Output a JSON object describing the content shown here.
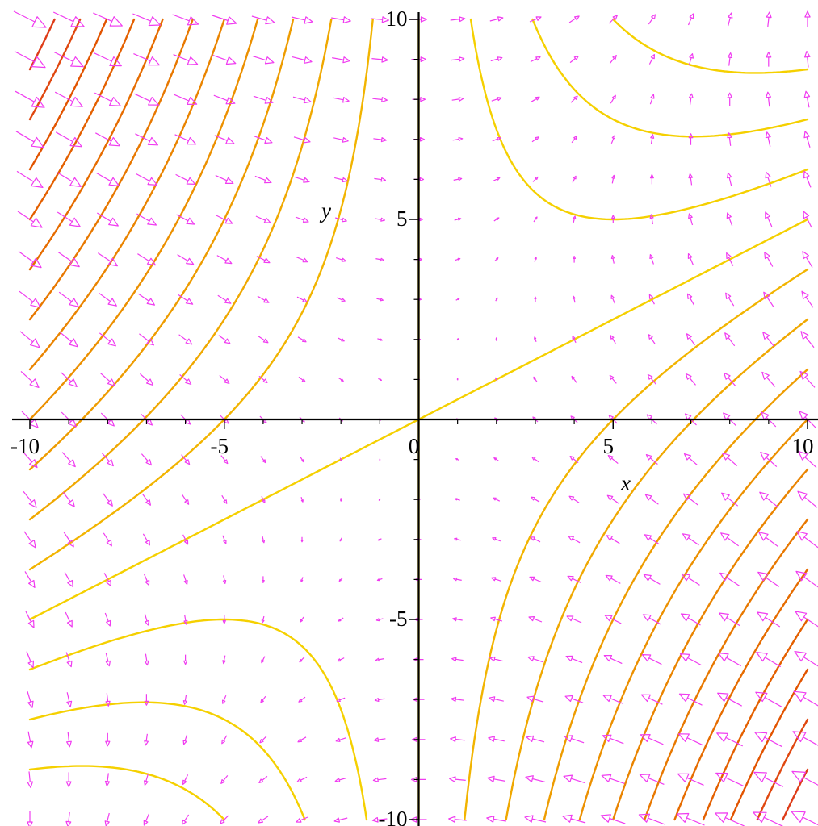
{
  "chart_data": {
    "type": "vector_field",
    "xlabel": "x",
    "ylabel": "y",
    "xlim": [
      -10,
      10
    ],
    "ylim": [
      -10,
      10
    ],
    "xticks": [
      -10,
      -5,
      0,
      5,
      10
    ],
    "yticks": [
      -10,
      -5,
      5,
      10
    ],
    "xminorticks": [
      -9,
      -8,
      -7,
      -6,
      -4,
      -3,
      -2,
      -1,
      1,
      2,
      3,
      4,
      6,
      7,
      8,
      9
    ],
    "yminorticks": [
      -9,
      -8,
      -7,
      -6,
      -4,
      -3,
      -2,
      -1,
      1,
      2,
      3,
      4,
      6,
      7,
      8,
      9
    ],
    "arrow_color": "#f03cf0",
    "axis_color": "#000000",
    "field": {
      "x": [
        -10,
        -9,
        -8,
        -7,
        -6,
        -5,
        -4,
        -3,
        -2,
        -1,
        0,
        1,
        2,
        3,
        4,
        5,
        6,
        7,
        8,
        9,
        10
      ],
      "y": [
        -10,
        -9,
        -8,
        -7,
        -6,
        -5,
        -4,
        -3,
        -2,
        -1,
        0,
        1,
        2,
        3,
        4,
        5,
        6,
        7,
        8,
        9,
        10
      ],
      "u": [
        [
          0,
          -1,
          -2,
          -3,
          -4,
          -5,
          -6,
          -7,
          -8,
          -9,
          -10,
          -11,
          -12,
          -13,
          -14,
          -15,
          -16,
          -17,
          -18,
          -19,
          -20
        ],
        [
          1,
          0,
          -1,
          -2,
          -3,
          -4,
          -5,
          -6,
          -7,
          -8,
          -9,
          -10,
          -11,
          -12,
          -13,
          -14,
          -15,
          -16,
          -17,
          -18,
          -19
        ],
        [
          2,
          1,
          0,
          -1,
          -2,
          -3,
          -4,
          -5,
          -6,
          -7,
          -8,
          -9,
          -10,
          -11,
          -12,
          -13,
          -14,
          -15,
          -16,
          -17,
          -18
        ],
        [
          3,
          2,
          1,
          0,
          -1,
          -2,
          -3,
          -4,
          -5,
          -6,
          -7,
          -8,
          -9,
          -10,
          -11,
          -12,
          -13,
          -14,
          -15,
          -16,
          -17
        ],
        [
          4,
          3,
          2,
          1,
          0,
          -1,
          -2,
          -3,
          -4,
          -5,
          -6,
          -7,
          -8,
          -9,
          -10,
          -11,
          -12,
          -13,
          -14,
          -15,
          -16
        ],
        [
          5,
          4,
          3,
          2,
          1,
          0,
          -1,
          -2,
          -3,
          -4,
          -5,
          -6,
          -7,
          -8,
          -9,
          -10,
          -11,
          -12,
          -13,
          -14,
          -15
        ],
        [
          6,
          5,
          4,
          3,
          2,
          1,
          0,
          -1,
          -2,
          -3,
          -4,
          -5,
          -6,
          -7,
          -8,
          -9,
          -10,
          -11,
          -12,
          -13,
          -14
        ],
        [
          7,
          6,
          5,
          4,
          3,
          2,
          1,
          0,
          -1,
          -2,
          -3,
          -4,
          -5,
          -6,
          -7,
          -8,
          -9,
          -10,
          -11,
          -12,
          -13
        ],
        [
          8,
          7,
          6,
          5,
          4,
          3,
          2,
          1,
          0,
          -1,
          -2,
          -3,
          -4,
          -5,
          -6,
          -7,
          -8,
          -9,
          -10,
          -11,
          -12
        ],
        [
          9,
          8,
          7,
          6,
          5,
          4,
          3,
          2,
          1,
          0,
          -1,
          -2,
          -3,
          -4,
          -5,
          -6,
          -7,
          -8,
          -9,
          -10,
          -11
        ],
        [
          10,
          9,
          8,
          7,
          6,
          5,
          4,
          3,
          2,
          1,
          0,
          -1,
          -2,
          -3,
          -4,
          -5,
          -6,
          -7,
          -8,
          -9,
          -10
        ],
        [
          11,
          10,
          9,
          8,
          7,
          6,
          5,
          4,
          3,
          2,
          1,
          0,
          -1,
          -2,
          -3,
          -4,
          -5,
          -6,
          -7,
          -8,
          -9
        ],
        [
          12,
          11,
          10,
          9,
          8,
          7,
          6,
          5,
          4,
          3,
          2,
          1,
          0,
          -1,
          -2,
          -3,
          -4,
          -5,
          -6,
          -7,
          -8
        ],
        [
          13,
          12,
          11,
          10,
          9,
          8,
          7,
          6,
          5,
          4,
          3,
          2,
          1,
          0,
          -1,
          -2,
          -3,
          -4,
          -5,
          -6,
          -7
        ],
        [
          14,
          13,
          12,
          11,
          10,
          9,
          8,
          7,
          6,
          5,
          4,
          3,
          2,
          1,
          0,
          -1,
          -2,
          -3,
          -4,
          -5,
          -6
        ],
        [
          15,
          14,
          13,
          12,
          11,
          10,
          9,
          8,
          7,
          6,
          5,
          4,
          3,
          2,
          1,
          0,
          -1,
          -2,
          -3,
          -4,
          -5
        ],
        [
          16,
          15,
          14,
          13,
          12,
          11,
          10,
          9,
          8,
          7,
          6,
          5,
          4,
          3,
          2,
          1,
          0,
          -1,
          -2,
          -3,
          -4
        ],
        [
          17,
          16,
          15,
          14,
          13,
          12,
          11,
          10,
          9,
          8,
          7,
          6,
          5,
          4,
          3,
          2,
          1,
          0,
          -1,
          -2,
          -3
        ],
        [
          18,
          17,
          16,
          15,
          14,
          13,
          12,
          11,
          10,
          9,
          8,
          7,
          6,
          5,
          4,
          3,
          2,
          1,
          0,
          -1,
          -2
        ],
        [
          19,
          18,
          17,
          16,
          15,
          14,
          13,
          12,
          11,
          10,
          9,
          8,
          7,
          6,
          5,
          4,
          3,
          2,
          1,
          0,
          -1
        ],
        [
          20,
          19,
          18,
          17,
          16,
          15,
          14,
          13,
          12,
          11,
          10,
          9,
          8,
          7,
          6,
          5,
          4,
          3,
          2,
          1,
          0
        ]
      ],
      "v": [
        [
          -10,
          -9,
          -8,
          -7,
          -6,
          -5,
          -4,
          -3,
          -2,
          -1,
          0,
          1,
          2,
          3,
          4,
          5,
          6,
          7,
          8,
          9,
          10
        ],
        [
          -10,
          -9,
          -8,
          -7,
          -6,
          -5,
          -4,
          -3,
          -2,
          -1,
          0,
          1,
          2,
          3,
          4,
          5,
          6,
          7,
          8,
          9,
          10
        ],
        [
          -10,
          -9,
          -8,
          -7,
          -6,
          -5,
          -4,
          -3,
          -2,
          -1,
          0,
          1,
          2,
          3,
          4,
          5,
          6,
          7,
          8,
          9,
          10
        ],
        [
          -10,
          -9,
          -8,
          -7,
          -6,
          -5,
          -4,
          -3,
          -2,
          -1,
          0,
          1,
          2,
          3,
          4,
          5,
          6,
          7,
          8,
          9,
          10
        ],
        [
          -10,
          -9,
          -8,
          -7,
          -6,
          -5,
          -4,
          -3,
          -2,
          -1,
          0,
          1,
          2,
          3,
          4,
          5,
          6,
          7,
          8,
          9,
          10
        ],
        [
          -10,
          -9,
          -8,
          -7,
          -6,
          -5,
          -4,
          -3,
          -2,
          -1,
          0,
          1,
          2,
          3,
          4,
          5,
          6,
          7,
          8,
          9,
          10
        ],
        [
          -10,
          -9,
          -8,
          -7,
          -6,
          -5,
          -4,
          -3,
          -2,
          -1,
          0,
          1,
          2,
          3,
          4,
          5,
          6,
          7,
          8,
          9,
          10
        ],
        [
          -10,
          -9,
          -8,
          -7,
          -6,
          -5,
          -4,
          -3,
          -2,
          -1,
          0,
          1,
          2,
          3,
          4,
          5,
          6,
          7,
          8,
          9,
          10
        ],
        [
          -10,
          -9,
          -8,
          -7,
          -6,
          -5,
          -4,
          -3,
          -2,
          -1,
          0,
          1,
          2,
          3,
          4,
          5,
          6,
          7,
          8,
          9,
          10
        ],
        [
          -10,
          -9,
          -8,
          -7,
          -6,
          -5,
          -4,
          -3,
          -2,
          -1,
          0,
          1,
          2,
          3,
          4,
          5,
          6,
          7,
          8,
          9,
          10
        ],
        [
          -10,
          -9,
          -8,
          -7,
          -6,
          -5,
          -4,
          -3,
          -2,
          -1,
          0,
          1,
          2,
          3,
          4,
          5,
          6,
          7,
          8,
          9,
          10
        ],
        [
          -10,
          -9,
          -8,
          -7,
          -6,
          -5,
          -4,
          -3,
          -2,
          -1,
          0,
          1,
          2,
          3,
          4,
          5,
          6,
          7,
          8,
          9,
          10
        ],
        [
          -10,
          -9,
          -8,
          -7,
          -6,
          -5,
          -4,
          -3,
          -2,
          -1,
          0,
          1,
          2,
          3,
          4,
          5,
          6,
          7,
          8,
          9,
          10
        ],
        [
          -10,
          -9,
          -8,
          -7,
          -6,
          -5,
          -4,
          -3,
          -2,
          -1,
          0,
          1,
          2,
          3,
          4,
          5,
          6,
          7,
          8,
          9,
          10
        ],
        [
          -10,
          -9,
          -8,
          -7,
          -6,
          -5,
          -4,
          -3,
          -2,
          -1,
          0,
          1,
          2,
          3,
          4,
          5,
          6,
          7,
          8,
          9,
          10
        ],
        [
          -10,
          -9,
          -8,
          -7,
          -6,
          -5,
          -4,
          -3,
          -2,
          -1,
          0,
          1,
          2,
          3,
          4,
          5,
          6,
          7,
          8,
          9,
          10
        ],
        [
          -10,
          -9,
          -8,
          -7,
          -6,
          -5,
          -4,
          -3,
          -2,
          -1,
          0,
          1,
          2,
          3,
          4,
          5,
          6,
          7,
          8,
          9,
          10
        ],
        [
          -10,
          -9,
          -8,
          -7,
          -6,
          -5,
          -4,
          -3,
          -2,
          -1,
          0,
          1,
          2,
          3,
          4,
          5,
          6,
          7,
          8,
          9,
          10
        ],
        [
          -10,
          -9,
          -8,
          -7,
          -6,
          -5,
          -4,
          -3,
          -2,
          -1,
          0,
          1,
          2,
          3,
          4,
          5,
          6,
          7,
          8,
          9,
          10
        ],
        [
          -10,
          -9,
          -8,
          -7,
          -6,
          -5,
          -4,
          -3,
          -2,
          -1,
          0,
          1,
          2,
          3,
          4,
          5,
          6,
          7,
          8,
          9,
          10
        ],
        [
          -10,
          -9,
          -8,
          -7,
          -6,
          -5,
          -4,
          -3,
          -2,
          -1,
          0,
          1,
          2,
          3,
          4,
          5,
          6,
          7,
          8,
          9,
          10
        ]
      ]
    },
    "contours": {
      "levels": [
        37.5,
        25,
        12.5,
        0,
        -12.5,
        -25,
        -37.5,
        -50,
        -62.5,
        -75,
        -87.5,
        -100,
        -112.5,
        -125,
        -137.5
      ],
      "colors": [
        "#f5d000",
        "#f5d000",
        "#f5d000",
        "#f5d000",
        "#f2b400",
        "#f0a800",
        "#ee9c00",
        "#ec9000",
        "#ea8400",
        "#e87800",
        "#e66c00",
        "#e46000",
        "#e25400",
        "#e04810",
        "#de3c18"
      ]
    }
  }
}
